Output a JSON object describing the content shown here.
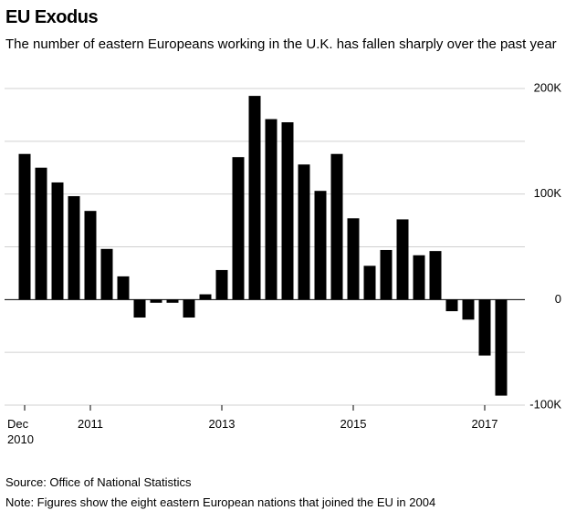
{
  "chart_data": {
    "type": "bar",
    "title": "EU Exodus",
    "subtitle": "The number of eastern Europeans working in the U.K. has fallen sharply over the past year",
    "source": "Source: Office of National Statistics",
    "note": "Note: Figures show the eight eastern European nations that joined the EU in 2004",
    "categories": [
      "Dec 2010",
      null,
      null,
      null,
      "2011",
      null,
      null,
      null,
      null,
      null,
      null,
      null,
      "2013",
      null,
      null,
      null,
      null,
      null,
      null,
      null,
      "2015",
      null,
      null,
      null,
      null,
      null,
      null,
      null,
      "2017",
      null
    ],
    "values": [
      138000,
      125000,
      111000,
      98000,
      84000,
      48000,
      22000,
      -17000,
      -3000,
      -3000,
      -17000,
      5000,
      28000,
      135000,
      193000,
      171000,
      168000,
      128000,
      103000,
      138000,
      77000,
      32000,
      47000,
      76000,
      42000,
      46000,
      -11000,
      -19000,
      -53000,
      -91000
    ],
    "color": "#000000",
    "ylim": [
      -100000,
      200000
    ],
    "yticks": [
      {
        "value": -100000,
        "label": "-100K"
      },
      {
        "value": 0,
        "label": "0"
      },
      {
        "value": 100000,
        "label": "100K"
      },
      {
        "value": 200000,
        "label": "200K"
      }
    ],
    "minor_yticks": [
      -50000,
      50000,
      150000
    ],
    "grid": true
  }
}
